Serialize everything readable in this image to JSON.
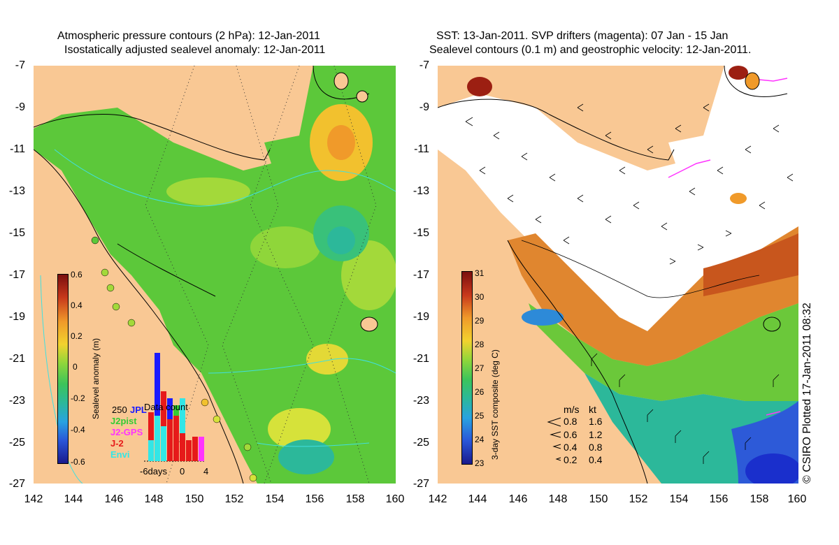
{
  "left_panel": {
    "title_line1": "Atmospheric pressure contours (2 hPa): 12-Jan-2011",
    "title_line2": "Isostatically adjusted sealevel anomaly: 12-Jan-2011",
    "colorbar": {
      "label": "Sealevel anomaly (m)",
      "ticks": [
        "0.6",
        "0.4",
        "0.2",
        "0",
        "-0.2",
        "-0.4",
        "-0.6"
      ]
    },
    "data_count": {
      "title": "Data count",
      "ymax": "250",
      "xlabel_left": "-6days",
      "xlabel_mid": "0",
      "xlabel_right": "4",
      "missions": [
        {
          "name": "JPL",
          "color": "#1a1aff"
        },
        {
          "name": "J2pist",
          "color": "#33cc33"
        },
        {
          "name": "J2-GPS",
          "color": "#ff33ff"
        },
        {
          "name": "J-2",
          "color": "#e61a1a"
        },
        {
          "name": "Envi",
          "color": "#33e6e6"
        }
      ]
    }
  },
  "right_panel": {
    "title_line1": "SST: 13-Jan-2011. SVP drifters (magenta): 07 Jan - 15 Jan",
    "title_line2": "Sealevel contours (0.1 m) and geostrophic velocity: 12-Jan-2011.",
    "colorbar": {
      "label": "3-day SST composite (deg C)",
      "ticks": [
        "31",
        "30",
        "29",
        "28",
        "27",
        "26",
        "25",
        "24",
        "23"
      ]
    },
    "velocity_legend": {
      "header_ms": "m/s",
      "header_kt": "kt",
      "rows": [
        {
          "ms": "0.8",
          "kt": "1.6"
        },
        {
          "ms": "0.6",
          "kt": "1.2"
        },
        {
          "ms": "0.4",
          "kt": "0.8"
        },
        {
          "ms": "0.2",
          "kt": "0.4"
        }
      ]
    },
    "credit": "© CSIRO Plotted 17-Jan-2011 08:32"
  },
  "axes": {
    "y_ticks": [
      "-7",
      "-9",
      "-11",
      "-13",
      "-15",
      "-17",
      "-19",
      "-21",
      "-23",
      "-25",
      "-27"
    ],
    "x_ticks": [
      "142",
      "144",
      "146",
      "148",
      "150",
      "152",
      "154",
      "156",
      "158",
      "160"
    ]
  },
  "colors": {
    "land": "#f9c894",
    "sea_green": "#5cc83a",
    "coast": "#000000",
    "contour_cyan": "#40e0e0"
  }
}
